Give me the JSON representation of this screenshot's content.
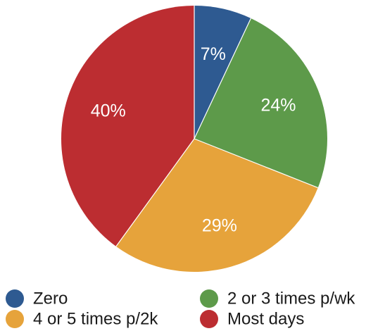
{
  "chart_data": {
    "type": "pie",
    "title": "",
    "legend_position": "bottom",
    "slices": [
      {
        "label": "Zero",
        "value": 7,
        "display": "7%",
        "color": "#2e5a91"
      },
      {
        "label": "2 or 3 times p/wk",
        "value": 24,
        "display": "24%",
        "color": "#5d9a4a"
      },
      {
        "label": "4 or 5 times p/2k",
        "value": 29,
        "display": "29%",
        "color": "#e6a33b"
      },
      {
        "label": "Most days",
        "value": 40,
        "display": "40%",
        "color": "#bc2d31"
      }
    ],
    "legend": [
      {
        "label": "Zero",
        "color": "#2e5a91"
      },
      {
        "label": "2 or 3 times p/wk",
        "color": "#5d9a4a"
      },
      {
        "label": "4 or 5 times p/2k",
        "color": "#e6a33b"
      },
      {
        "label": "Most days",
        "color": "#bc2d31"
      }
    ]
  }
}
